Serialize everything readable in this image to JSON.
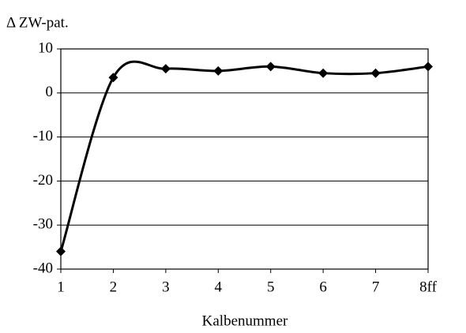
{
  "chart_data": {
    "type": "line",
    "y_axis_label": "Δ ZW-pat.",
    "x_axis_label": "Kalbenummer",
    "categories": [
      "1",
      "2",
      "3",
      "4",
      "5",
      "6",
      "7",
      "8ff"
    ],
    "series": [
      {
        "name": "Δ ZW-pat.",
        "color": "#000000",
        "values": [
          -36,
          3.5,
          5.5,
          5,
          6,
          4.5,
          4.5,
          6
        ]
      }
    ],
    "ylim": [
      -40,
      10
    ],
    "yticks": [
      -40,
      -30,
      -20,
      -10,
      0,
      10
    ],
    "grid": true,
    "smooth": true
  }
}
